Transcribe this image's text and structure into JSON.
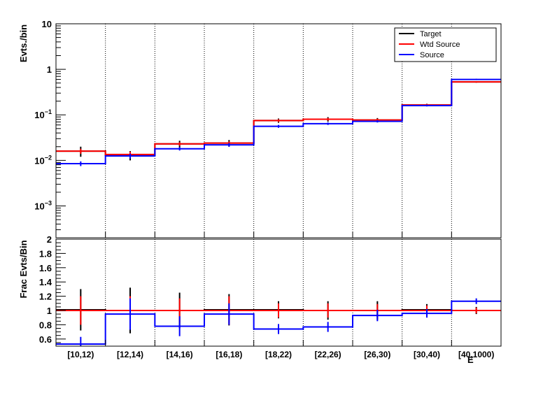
{
  "chart_data": [
    {
      "type": "step",
      "ylabel": "Evts./bin",
      "yscale": "log",
      "ylim": [
        0.0002,
        10
      ],
      "categories": [
        "[10,12)",
        "[12,14)",
        "[14,16)",
        "[16,18)",
        "[18,22)",
        "[22,26)",
        "[26,30)",
        "[30,40)",
        "[40,1000)"
      ],
      "xlabel_clipped": "E",
      "grid": "vertical-dotted",
      "legend_position": "top-right",
      "series": [
        {
          "name": "Target",
          "color": "#000000",
          "values": [
            0.016,
            0.013,
            0.023,
            0.024,
            0.075,
            0.08,
            0.077,
            0.165,
            0.53
          ],
          "errors": [
            0.004,
            0.003,
            0.004,
            0.004,
            0.008,
            0.009,
            0.008,
            0.01,
            0.02
          ]
        },
        {
          "name": "Wtd Source",
          "color": "#ff0000",
          "values": [
            0.016,
            0.0135,
            0.023,
            0.024,
            0.075,
            0.08,
            0.077,
            0.165,
            0.53
          ],
          "errors": [
            0.002,
            0.002,
            0.002,
            0.002,
            0.005,
            0.005,
            0.005,
            0.008,
            0.02
          ]
        },
        {
          "name": "Source",
          "color": "#0000ff",
          "values": [
            0.0085,
            0.0125,
            0.018,
            0.022,
            0.056,
            0.064,
            0.072,
            0.16,
            0.6
          ],
          "errors": [
            0.001,
            0.0015,
            0.0015,
            0.002,
            0.004,
            0.004,
            0.004,
            0.007,
            0.02
          ]
        }
      ],
      "yticks": [
        {
          "value": 0.001,
          "base": "10",
          "exp": "−3"
        },
        {
          "value": 0.01,
          "base": "10",
          "exp": "−2"
        },
        {
          "value": 0.1,
          "base": "10",
          "exp": "−1"
        },
        {
          "value": 1,
          "base": "1",
          "exp": ""
        },
        {
          "value": 10,
          "base": "10",
          "exp": ""
        }
      ]
    },
    {
      "type": "step",
      "ylabel": "Frac Evts/Bin",
      "ylim": [
        0.5,
        2
      ],
      "yticks": [
        0.6,
        0.8,
        1,
        1.2,
        1.4,
        1.6,
        1.8,
        2
      ],
      "ytick_labels": [
        "0.6",
        "0.8",
        "1",
        "1.2",
        "1.4",
        "1.6",
        "1.8",
        "2"
      ],
      "categories": [
        "[10,12)",
        "[12,14)",
        "[14,16)",
        "[16,18)",
        "[18,22)",
        "[22,26)",
        "[26,30)",
        "[30,40)",
        "[40,1000)"
      ],
      "series": [
        {
          "name": "Target",
          "color": "#000000",
          "values": [
            1.01,
            1.0,
            1.0,
            1.01,
            1.01,
            1.0,
            1.0,
            1.01,
            1.0
          ],
          "errors": [
            0.29,
            0.32,
            0.25,
            0.22,
            0.12,
            0.13,
            0.13,
            0.08,
            0.05
          ]
        },
        {
          "name": "Wtd Source",
          "color": "#ff0000",
          "values": [
            1.0,
            1.0,
            1.0,
            1.0,
            1.0,
            1.0,
            1.0,
            1.0,
            1.0
          ],
          "errors": [
            0.2,
            0.2,
            0.17,
            0.2,
            0.1,
            0.1,
            0.09,
            0.07,
            0.04
          ]
        },
        {
          "name": "Source",
          "color": "#0000ff",
          "values": [
            0.53,
            0.95,
            0.78,
            0.95,
            0.74,
            0.77,
            0.93,
            0.96,
            1.13
          ],
          "errors": [
            0.1,
            0.22,
            0.14,
            0.15,
            0.07,
            0.07,
            0.08,
            0.06,
            0.04
          ]
        }
      ]
    }
  ]
}
